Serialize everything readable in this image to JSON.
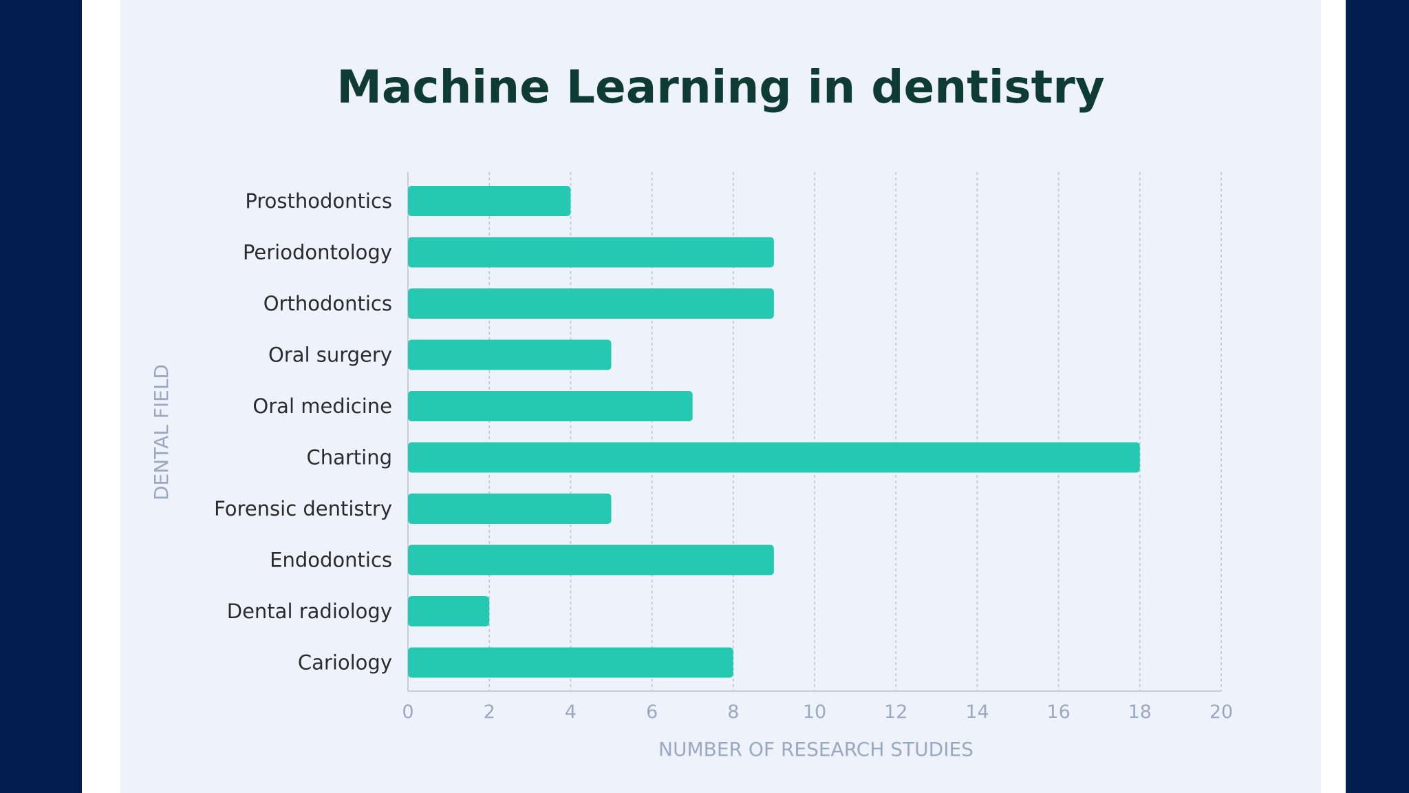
{
  "colors": {
    "frame": "#011e4f",
    "card": "#eef2fb",
    "bar": "#25c9b1",
    "title": "#0f3b35",
    "axis_text": "#9aa8c0",
    "grid": "#c7ccd6"
  },
  "chart_data": {
    "type": "bar",
    "orientation": "horizontal",
    "title": "Machine Learning in dentistry",
    "xlabel": "NUMBER OF RESEARCH STUDIES",
    "ylabel": "DENTAL FIELD",
    "categories": [
      "Prosthodontics",
      "Periodontology",
      "Orthodontics",
      "Oral surgery",
      "Oral medicine",
      "Charting",
      "Forensic dentistry",
      "Endodontics",
      "Dental radiology",
      "Cariology"
    ],
    "values": [
      4,
      9,
      9,
      5,
      7,
      18,
      5,
      9,
      2,
      8
    ],
    "xlim": [
      0,
      20
    ],
    "xticks": [
      "0",
      "2",
      "4",
      "6",
      "8",
      "10",
      "12",
      "14",
      "16",
      "18",
      "20"
    ],
    "grid": "vertical dashed",
    "legend": "none"
  }
}
